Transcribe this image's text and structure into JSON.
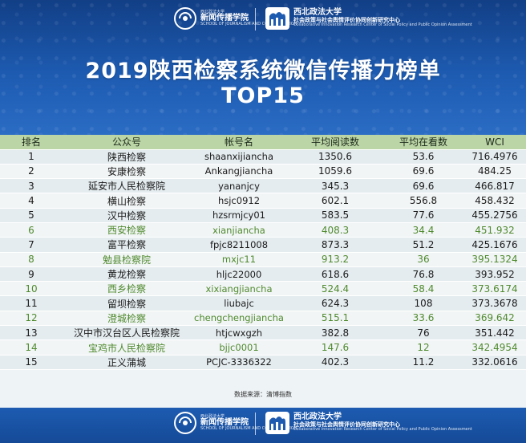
{
  "header": {
    "logo_left": {
      "cn_small": "西北政法大学",
      "cn_main": "新闻传播学院",
      "en": "SCHOOL OF JOURNALISM AND COMMUNICATION"
    },
    "logo_right": {
      "cn_main": "西北政法大学",
      "cn_sub": "社会政策与社会舆情评价协同创新研究中心",
      "en": "Collaborative Innovation Research Center of Social Policy and Public Opinion Assessment"
    },
    "title": "2019陕西检察系统微信传播力榜单",
    "subtitle": "TOP15"
  },
  "table": {
    "columns": [
      "排名",
      "公众号",
      "帐号名",
      "平均阅读数",
      "平均在看数",
      "WCI"
    ],
    "rows": [
      {
        "rank": "1",
        "name": "陕西检察",
        "account": "shaanxijiancha",
        "reads": "1350.6",
        "likes": "53.6",
        "wci": "716.4976",
        "green": false
      },
      {
        "rank": "2",
        "name": "安康检察",
        "account": "Ankangjiancha",
        "reads": "1059.6",
        "likes": "69.6",
        "wci": "484.25",
        "green": false
      },
      {
        "rank": "3",
        "name": "延安市人民检察院",
        "account": "yananjcy",
        "reads": "345.3",
        "likes": "69.6",
        "wci": "466.817",
        "green": false
      },
      {
        "rank": "4",
        "name": "横山检察",
        "account": "hsjc0912",
        "reads": "602.1",
        "likes": "556.8",
        "wci": "458.432",
        "green": false
      },
      {
        "rank": "5",
        "name": "汉中检察",
        "account": "hzsrmjcy01",
        "reads": "583.5",
        "likes": "77.6",
        "wci": "455.2756",
        "green": false
      },
      {
        "rank": "6",
        "name": "西安检察",
        "account": "xianjiancha",
        "reads": "408.3",
        "likes": "34.4",
        "wci": "451.932",
        "green": true
      },
      {
        "rank": "7",
        "name": "富平检察",
        "account": "fpjc8211008",
        "reads": "873.3",
        "likes": "51.2",
        "wci": "425.1676",
        "green": false
      },
      {
        "rank": "8",
        "name": "勉县检察院",
        "account": "mxjc11",
        "reads": "913.2",
        "likes": "36",
        "wci": "395.1324",
        "green": true
      },
      {
        "rank": "9",
        "name": "黄龙检察",
        "account": "hljc22000",
        "reads": "618.6",
        "likes": "76.8",
        "wci": "393.952",
        "green": false
      },
      {
        "rank": "10",
        "name": "西乡检察",
        "account": "xixiangjiancha",
        "reads": "524.4",
        "likes": "58.4",
        "wci": "373.6174",
        "green": true
      },
      {
        "rank": "11",
        "name": "留坝检察",
        "account": "liubajc",
        "reads": "624.3",
        "likes": "108",
        "wci": "373.3678",
        "green": false
      },
      {
        "rank": "12",
        "name": "澄城检察",
        "account": "chengchengjiancha",
        "reads": "515.1",
        "likes": "33.6",
        "wci": "369.642",
        "green": true
      },
      {
        "rank": "13",
        "name": "汉中市汉台区人民检察院",
        "account": "htjcwxgzh",
        "reads": "382.8",
        "likes": "76",
        "wci": "351.442",
        "green": false
      },
      {
        "rank": "14",
        "name": "宝鸡市人民检察院",
        "account": "bjjc0001",
        "reads": "147.6",
        "likes": "12",
        "wci": "342.4954",
        "green": true
      },
      {
        "rank": "15",
        "name": "正义蒲城",
        "account": "PCJC-3336322",
        "reads": "402.3",
        "likes": "11.2",
        "wci": "332.0616",
        "green": false
      }
    ]
  },
  "source_note": "数据来源：清博指数",
  "colors": {
    "header_blue": "#1d5bb1",
    "table_header_green": "#bcd5a6",
    "green_text": "#4f8a2e"
  }
}
